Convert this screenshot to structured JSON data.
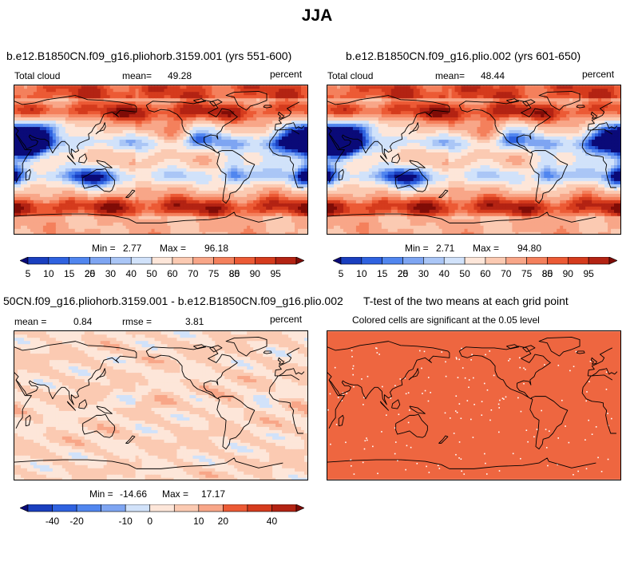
{
  "page": {
    "title": "JJA"
  },
  "panels": [
    {
      "title": "b.e12.B1850CN.f09_g16.pliohorb.3159.001 (yrs 551-600)",
      "left_label": "Total cloud",
      "mid_label": "mean=",
      "mid_value": "49.28",
      "right_label": "percent",
      "min_label": "Min =",
      "min_value": "2.77",
      "max_label": "Max =",
      "max_value": "96.18",
      "colorbar": "abs"
    },
    {
      "title": "b.e12.B1850CN.f09_g16.plio.002 (yrs 601-650)",
      "left_label": "Total cloud",
      "mid_label": "mean=",
      "mid_value": "48.44",
      "right_label": "percent",
      "min_label": "Min =",
      "min_value": "2.71",
      "max_label": "Max =",
      "max_value": "94.80",
      "colorbar": "abs"
    },
    {
      "title": "50CN.f09_g16.pliohorb.3159.001 - b.e12.B1850CN.f09_g16.plio.002",
      "left_label": "mean =",
      "left_value": "0.84",
      "mid_label": "rmse =",
      "mid_value": "3.81",
      "right_label": "percent",
      "min_label": "Min =",
      "min_value": "-14.66",
      "max_label": "Max =",
      "max_value": "17.17",
      "colorbar": "diff"
    },
    {
      "title": "T-test of the two means at each grid point",
      "subtitle": "Colored cells are significant at the 0.05 level",
      "fill_color": "#ee6640"
    }
  ],
  "chart_data": [
    {
      "type": "heatmap",
      "title": "b.e12.B1850CN.f09_g16.pliohorb.3159.001 (yrs 551-600)",
      "variable": "Total cloud",
      "units": "percent",
      "mean": 49.28,
      "min": 2.77,
      "max": 96.18,
      "levels": [
        5,
        10,
        15,
        20,
        25,
        30,
        40,
        50,
        60,
        70,
        75,
        80,
        85,
        90,
        95
      ]
    },
    {
      "type": "heatmap",
      "title": "b.e12.B1850CN.f09_g16.plio.002 (yrs 601-650)",
      "variable": "Total cloud",
      "units": "percent",
      "mean": 48.44,
      "min": 2.71,
      "max": 94.8,
      "levels": [
        5,
        10,
        15,
        20,
        25,
        30,
        40,
        50,
        60,
        70,
        75,
        80,
        85,
        90,
        95
      ]
    },
    {
      "type": "heatmap",
      "title": "50CN.f09_g16.pliohorb.3159.001 - b.e12.B1850CN.f09_g16.plio.002",
      "units": "percent",
      "mean": 0.84,
      "rmse": 3.81,
      "min": -14.66,
      "max": 17.17,
      "levels": [
        -40,
        -30,
        -20,
        -15,
        -10,
        -5,
        0,
        5,
        10,
        15,
        20,
        30,
        40
      ],
      "tick_labels": [
        "-40",
        "-20",
        "-10",
        "0",
        "10",
        "20",
        "40"
      ]
    },
    {
      "type": "heatmap",
      "title": "T-test of the two means at each grid point",
      "subtitle": "Colored cells are significant at the 0.05 level",
      "significance_level": 0.05
    }
  ],
  "colorbars": {
    "abs": {
      "colors": [
        "#0a0a78",
        "#1a3fbf",
        "#2f62e0",
        "#5186ef",
        "#7ea5f2",
        "#aac6f6",
        "#d1e2fa",
        "#fde6d9",
        "#fbcab2",
        "#f8a688",
        "#f4805c",
        "#ec5a35",
        "#d53b1d",
        "#b32313",
        "#7f0c07"
      ],
      "labels": [
        "5",
        "10",
        "15",
        "20",
        "25",
        "30",
        "40",
        "50",
        "60",
        "70",
        "75",
        "80",
        "85",
        "90",
        "95"
      ]
    },
    "diff": {
      "colors": [
        "#0a0a78",
        "#1a3fbf",
        "#2f62e0",
        "#5186ef",
        "#7ea5f2",
        "#d1e2fa",
        "#fde6d9",
        "#fbcab2",
        "#f8a688",
        "#ec5a35",
        "#d53b1d",
        "#b32313",
        "#7f0c07"
      ],
      "labels": [
        "-40",
        "-20",
        "-10",
        "0",
        "10",
        "20",
        "40"
      ]
    }
  }
}
